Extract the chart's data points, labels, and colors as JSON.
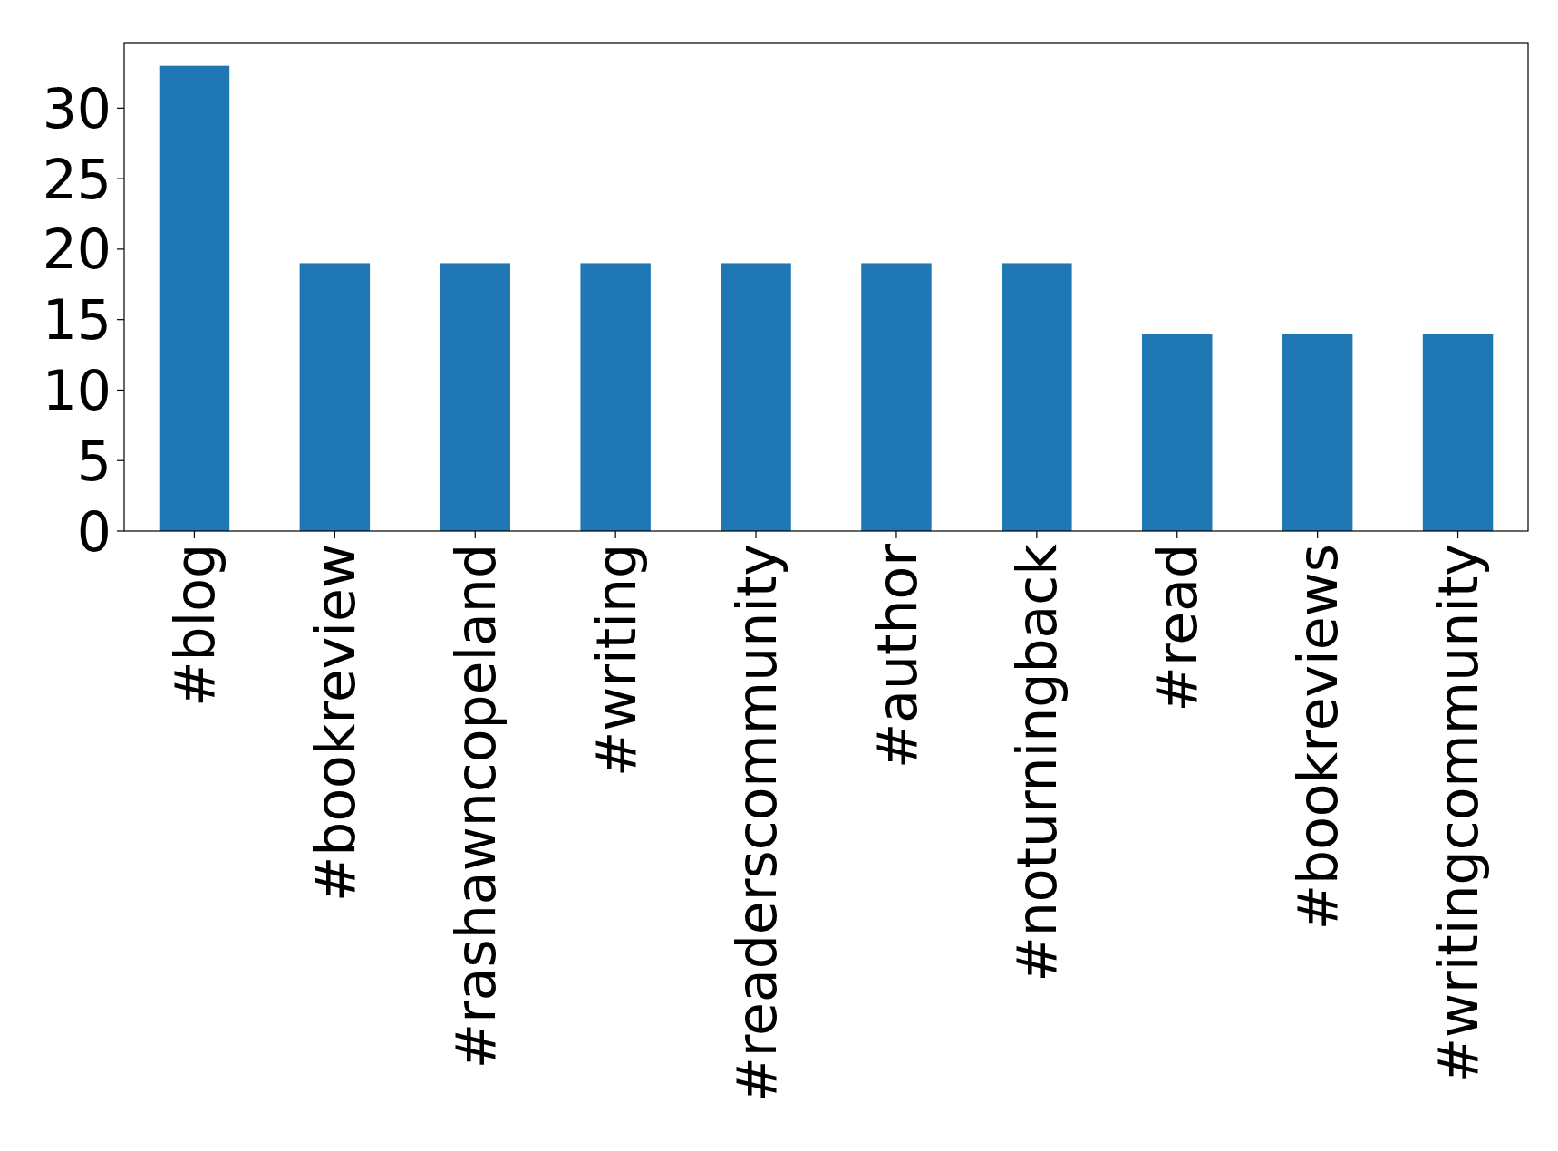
{
  "chart_data": {
    "type": "bar",
    "categories": [
      "#blog",
      "#bookreview",
      "#rashawncopeland",
      "#writing",
      "#readerscommunity",
      "#author",
      "#noturningback",
      "#read",
      "#bookreviews",
      "#writingcommunity"
    ],
    "values": [
      33,
      19,
      19,
      19,
      19,
      19,
      19,
      14,
      14,
      14
    ],
    "color": "#1f77b4",
    "ylim": [
      0,
      34.65
    ],
    "yticks": [
      0,
      5,
      10,
      15,
      20,
      25,
      30
    ],
    "grid": false
  }
}
